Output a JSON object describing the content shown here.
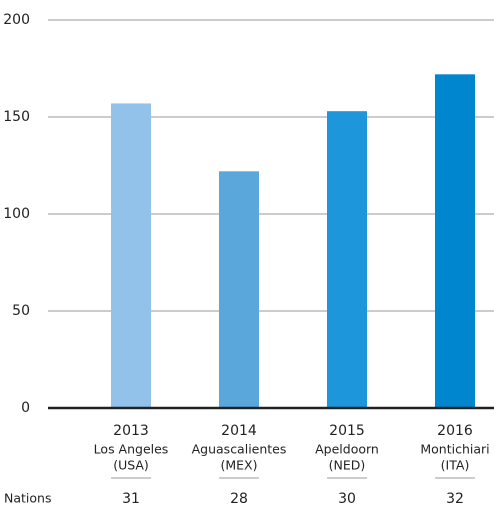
{
  "chart_data": {
    "type": "bar",
    "categories": [
      "2013",
      "2014",
      "2015",
      "2016"
    ],
    "cities": [
      "Los Angeles",
      "Aguascalientes",
      "Apeldoorn",
      "Montichiari"
    ],
    "countries": [
      "(USA)",
      "(MEX)",
      "(NED)",
      "(ITA)"
    ],
    "values": [
      157,
      122,
      153,
      172
    ],
    "colors": [
      "#92c1e9",
      "#5aa7dc",
      "#1e96dc",
      "#0085cf"
    ],
    "ylim": [
      0,
      200
    ],
    "yticks": [
      0,
      50,
      100,
      150,
      200
    ],
    "grid": true,
    "nations": {
      "label": "Nations",
      "values": [
        31,
        28,
        30,
        32
      ]
    }
  }
}
